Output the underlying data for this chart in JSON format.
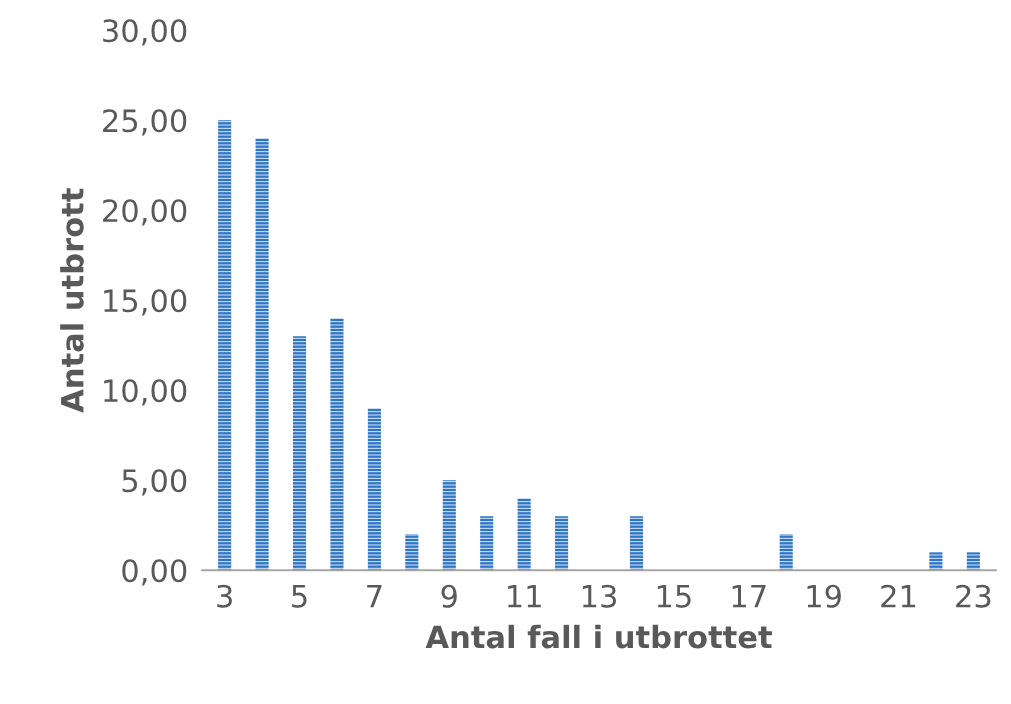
{
  "chart_data": {
    "type": "bar",
    "xlabel": "Antal fall i utbrottet",
    "ylabel": "Antal utbrott",
    "categories": [
      "3",
      null,
      "5",
      null,
      "7",
      null,
      "9",
      null,
      "11",
      null,
      "13",
      null,
      "15",
      null,
      "17",
      null,
      "19",
      null,
      "21",
      null,
      "23"
    ],
    "values": [
      25,
      24,
      13,
      14,
      9,
      2,
      5,
      3,
      4,
      3,
      0,
      3,
      0,
      0,
      0,
      2,
      0,
      0,
      0,
      1,
      1
    ],
    "color": "#2e75c6",
    "ylim": [
      0,
      30
    ],
    "yticks": [
      {
        "value": 0,
        "label": "0,00"
      },
      {
        "value": 5,
        "label": "5,00"
      },
      {
        "value": 10,
        "label": "10,00"
      },
      {
        "value": 15,
        "label": "15,00"
      },
      {
        "value": 20,
        "label": "20,00"
      },
      {
        "value": 25,
        "label": "25,00"
      },
      {
        "value": 30,
        "label": "30,00"
      }
    ],
    "grid": false
  }
}
